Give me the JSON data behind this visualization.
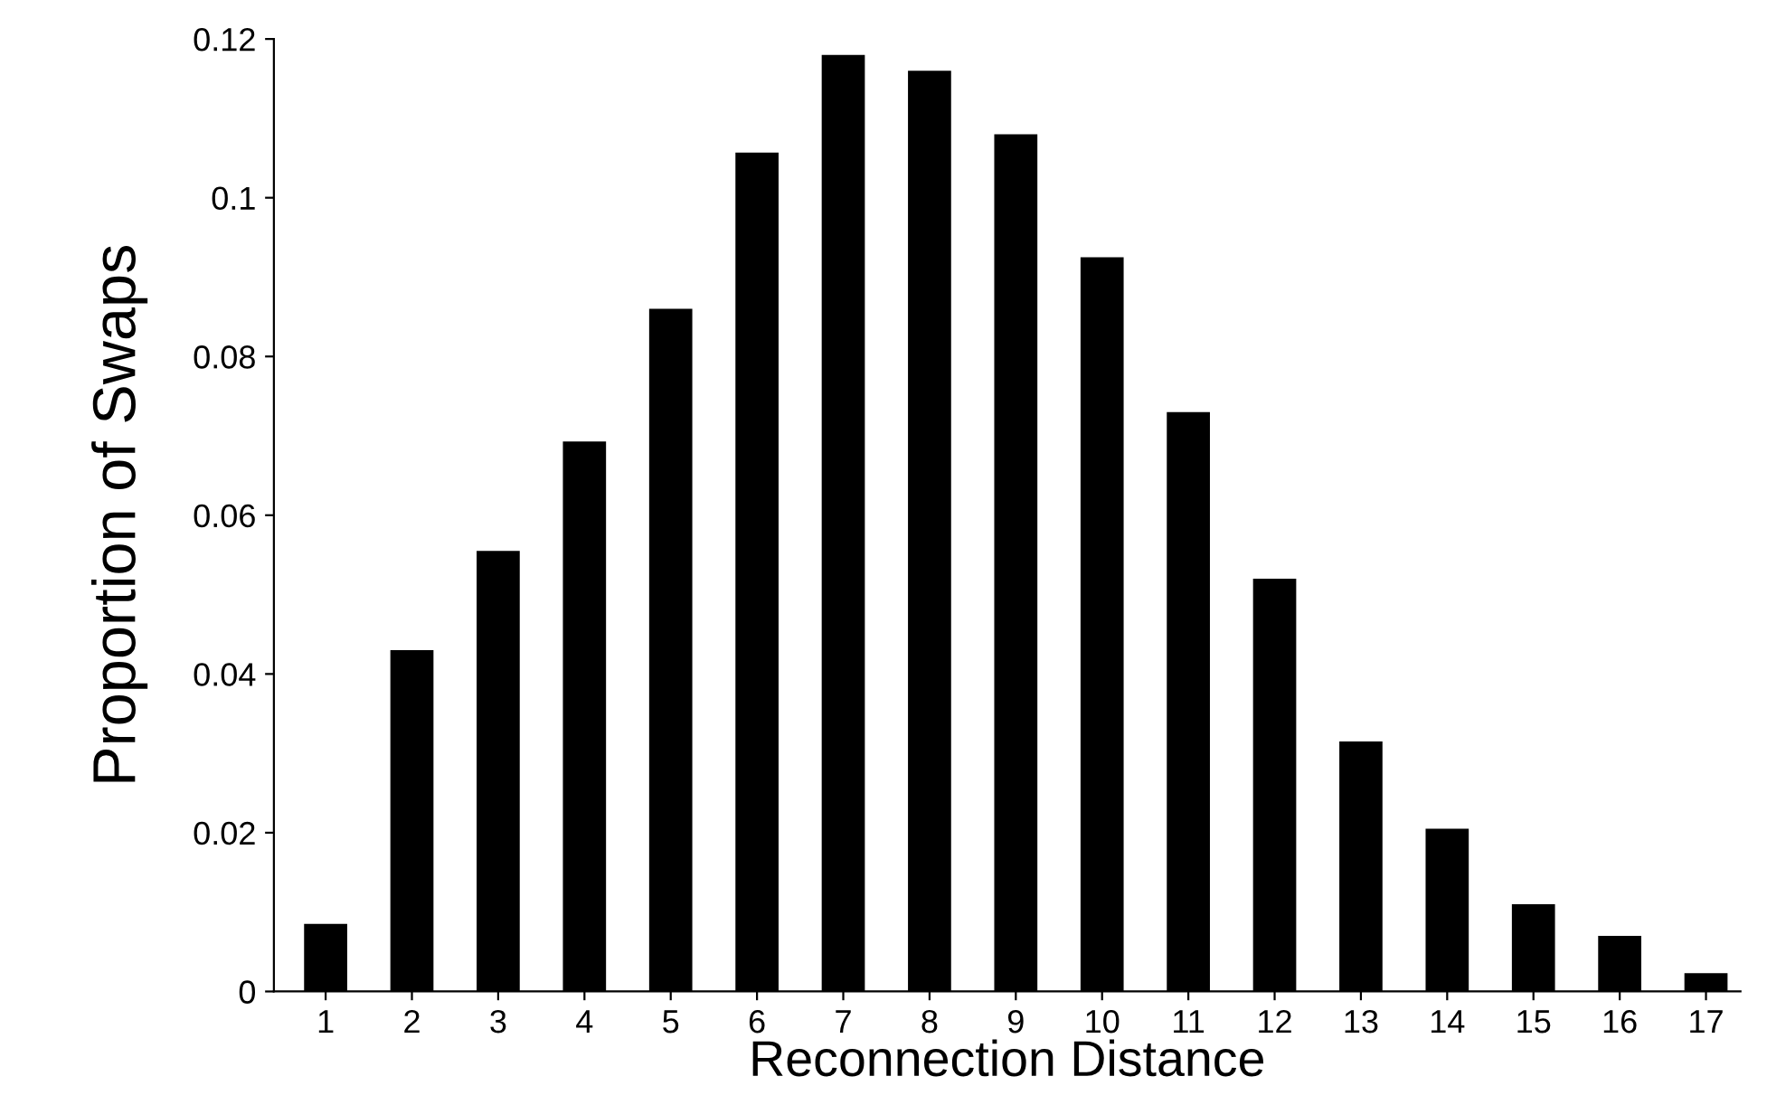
{
  "chart_data": {
    "type": "bar",
    "xlabel": "Reconnection Distance",
    "ylabel": "Proportion of Swaps",
    "categories": [
      "1",
      "2",
      "3",
      "4",
      "5",
      "6",
      "7",
      "8",
      "9",
      "10",
      "11",
      "12",
      "13",
      "14",
      "15",
      "16",
      "17"
    ],
    "values": [
      0.0085,
      0.043,
      0.0555,
      0.0693,
      0.086,
      0.1057,
      0.118,
      0.116,
      0.108,
      0.0925,
      0.073,
      0.052,
      0.0315,
      0.0205,
      0.011,
      0.007,
      0.0023
    ],
    "color": "#000000",
    "ylim": [
      0,
      0.12
    ],
    "yticks": [
      0,
      0.02,
      0.04,
      0.06,
      0.08,
      {
        "value": 0.1,
        "label": "0.1"
      },
      0.12
    ],
    "grid": false,
    "legend": false
  }
}
